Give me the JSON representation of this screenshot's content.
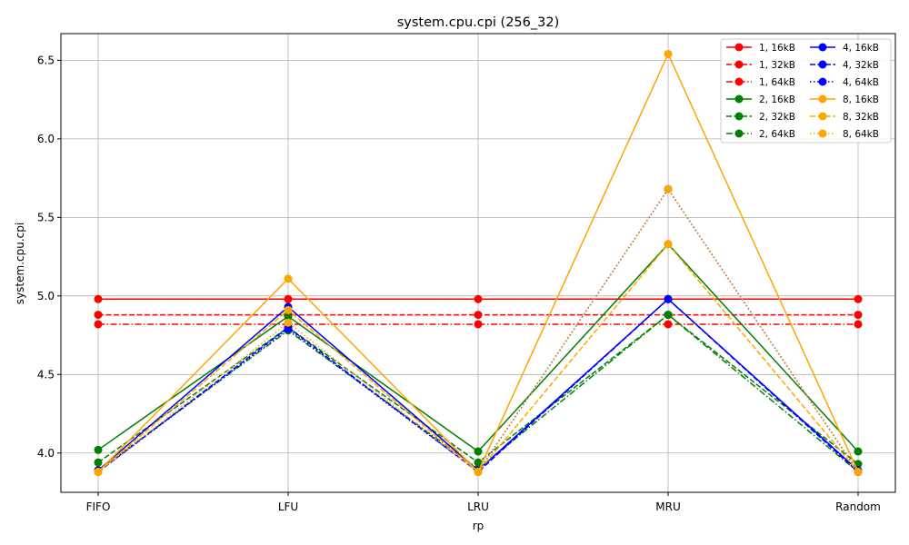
{
  "chart_data": {
    "type": "line",
    "title": "system.cpu.cpi (256_32)",
    "xlabel": "rp",
    "ylabel": "system.cpu.cpi",
    "categories": [
      "FIFO",
      "LFU",
      "LRU",
      "MRU",
      "Random"
    ],
    "ylim": [
      3.75,
      6.67
    ],
    "yticks": [
      4.0,
      4.5,
      5.0,
      5.5,
      6.0,
      6.5
    ],
    "ytick_labels": [
      "4.0",
      "4.5",
      "5.0",
      "5.5",
      "6.0",
      "6.5"
    ],
    "grid": true,
    "legend_position": "top-right",
    "legend_columns": 2,
    "series": [
      {
        "name": "1, 16kB",
        "color": "#ff0000",
        "dash": "solid",
        "values": [
          4.98,
          4.98,
          4.98,
          4.98,
          4.98
        ]
      },
      {
        "name": "1, 32kB",
        "color": "#ff0000",
        "dash": "dashed",
        "values": [
          4.88,
          4.88,
          4.88,
          4.88,
          4.88
        ]
      },
      {
        "name": "1, 64kB",
        "color": "#ff0000",
        "dash": "dashdot",
        "values": [
          4.82,
          4.82,
          4.82,
          4.82,
          4.82
        ]
      },
      {
        "name": "2, 16kB",
        "color": "#008000",
        "dash": "solid",
        "values": [
          4.02,
          4.87,
          4.01,
          5.33,
          4.01
        ]
      },
      {
        "name": "2, 32kB",
        "color": "#008000",
        "dash": "dashed",
        "values": [
          3.94,
          4.8,
          3.94,
          4.88,
          3.93
        ]
      },
      {
        "name": "2, 64kB",
        "color": "#008000",
        "dash": "dashdot",
        "values": [
          3.89,
          4.78,
          3.9,
          4.88,
          3.88
        ]
      },
      {
        "name": "4, 16kB",
        "color": "#0000ff",
        "dash": "solid",
        "values": [
          3.89,
          4.93,
          3.89,
          4.98,
          3.89
        ]
      },
      {
        "name": "4, 32kB",
        "color": "#0000ff",
        "dash": "dashed",
        "values": [
          3.88,
          4.8,
          3.88,
          4.98,
          3.88
        ]
      },
      {
        "name": "4, 64kB",
        "color": "#0000ff",
        "dash": "dotted",
        "values": [
          3.88,
          4.79,
          3.88,
          5.68,
          3.88
        ]
      },
      {
        "name": "8, 16kB",
        "color": "#ffa500",
        "dash": "solid",
        "values": [
          3.88,
          5.11,
          3.88,
          6.54,
          3.88
        ]
      },
      {
        "name": "8, 32kB",
        "color": "#ffa500",
        "dash": "dashed",
        "values": [
          3.88,
          4.91,
          3.88,
          5.33,
          3.88
        ]
      },
      {
        "name": "8, 64kB",
        "color": "#ffa500",
        "dash": "dotted",
        "values": [
          3.88,
          4.83,
          3.88,
          5.68,
          3.88
        ]
      }
    ]
  }
}
